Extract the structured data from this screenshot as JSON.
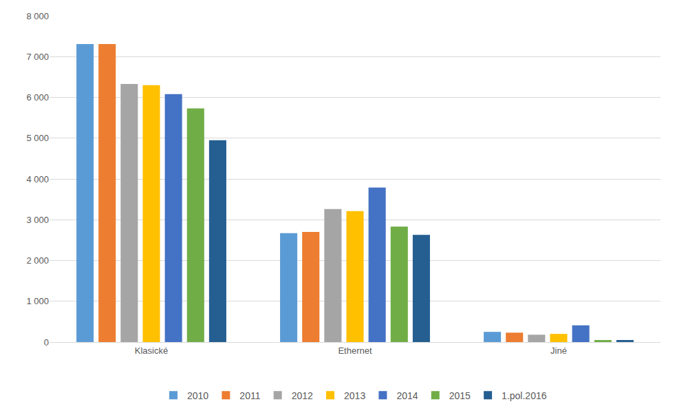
{
  "chart_data": {
    "type": "bar",
    "categories": [
      "Klasické",
      "Ethernet",
      "Jiné"
    ],
    "series": [
      {
        "name": "2010",
        "color": "#5b9bd5",
        "values": [
          7310,
          2670,
          250
        ]
      },
      {
        "name": "2011",
        "color": "#ed7d31",
        "values": [
          7310,
          2700,
          230
        ]
      },
      {
        "name": "2012",
        "color": "#a5a5a5",
        "values": [
          6330,
          3260,
          180
        ]
      },
      {
        "name": "2013",
        "color": "#ffc000",
        "values": [
          6300,
          3210,
          200
        ]
      },
      {
        "name": "2014",
        "color": "#4472c4",
        "values": [
          6080,
          3790,
          410
        ]
      },
      {
        "name": "2015",
        "color": "#70ad47",
        "values": [
          5730,
          2830,
          50
        ]
      },
      {
        "name": "1.pol.2016",
        "color": "#255e91",
        "values": [
          4950,
          2630,
          50
        ]
      }
    ],
    "ylim": [
      0,
      8000
    ],
    "yticks": [
      0,
      {
        "value": 1000,
        "label": "1 000"
      },
      {
        "value": 2000,
        "label": "2 000"
      },
      {
        "value": 3000,
        "label": "3 000"
      },
      {
        "value": 4000,
        "label": "4 000"
      },
      {
        "value": 5000,
        "label": "5 000"
      },
      {
        "value": 6000,
        "label": "6 000"
      },
      {
        "value": 7000,
        "label": "7 000"
      },
      {
        "value": 8000,
        "label": "8 000"
      }
    ],
    "grid": true,
    "legend": "bottom"
  }
}
